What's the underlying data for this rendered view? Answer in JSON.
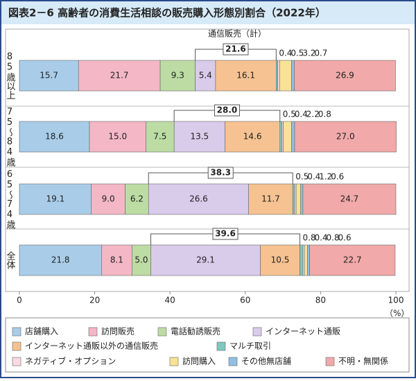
{
  "chart_data": {
    "type": "stacked-barh",
    "title": "図表2－6 高齢者の消費生活相談の販売購入形態別割合（2022年）",
    "xlabel": "（%）",
    "categories": [
      "85歳以上",
      "75～84歳",
      "65～74歳",
      "全体"
    ],
    "xlim": [
      0,
      100
    ],
    "xticks": [
      0,
      20,
      40,
      60,
      80,
      100
    ],
    "bracket_title": "通信販売（計）",
    "bracket_values": [
      21.6,
      28.0,
      38.3,
      39.6
    ],
    "bracket_labels": [
      "21.6",
      "28.0",
      "38.3",
      "39.6"
    ],
    "series": [
      {
        "name": "店舗購入",
        "color": "#a9cde9",
        "values": [
          15.7,
          18.6,
          19.1,
          21.8
        ],
        "value_labels": [
          "15.7",
          "18.6",
          "19.1",
          "21.8"
        ]
      },
      {
        "name": "訪問販売",
        "color": "#f3b7c6",
        "values": [
          21.7,
          15.0,
          9.0,
          8.1
        ],
        "value_labels": [
          "21.7",
          "15.0",
          "9.0",
          "8.1"
        ]
      },
      {
        "name": "電話勧誘販売",
        "color": "#bcdca4",
        "values": [
          9.3,
          7.5,
          6.2,
          5.0
        ],
        "value_labels": [
          "9.3",
          "7.5",
          "6.2",
          "5.0"
        ]
      },
      {
        "name": "インターネット通販",
        "color": "#d9cbea",
        "values": [
          5.4,
          13.5,
          26.6,
          29.1
        ],
        "value_labels": [
          "5.4",
          "13.5",
          "26.6",
          "29.1"
        ]
      },
      {
        "name": "インターネット通販以外の通信販売",
        "color": "#f6c291",
        "values": [
          16.1,
          14.6,
          11.7,
          10.5
        ],
        "value_labels": [
          "16.1",
          "14.6",
          "11.7",
          "10.5"
        ]
      },
      {
        "name": "マルチ取引",
        "color": "#7fc7bf",
        "values": [
          0.4,
          0.5,
          0.5,
          0.8
        ],
        "value_labels": [
          "0.4",
          "0.5",
          "0.5",
          "0.8"
        ]
      },
      {
        "name": "ネガティブ・オプション",
        "color": "#f9d9e2",
        "values": [
          0.5,
          0.4,
          0.4,
          0.4
        ],
        "value_labels": [
          "0.5",
          "0.4",
          "0.4",
          "0.4"
        ]
      },
      {
        "name": "訪問購入",
        "color": "#f9e196",
        "values": [
          3.2,
          2.2,
          1.2,
          0.8
        ],
        "value_labels": [
          "3.2",
          "2.2",
          "1.2",
          "0.8"
        ]
      },
      {
        "name": "その他無店舗",
        "color": "#8fc0e2",
        "values": [
          0.7,
          0.8,
          0.6,
          0.6
        ],
        "value_labels": [
          "0.7",
          "0.8",
          "0.6",
          "0.6"
        ]
      },
      {
        "name": "不明・無関係",
        "color": "#f1a9a9",
        "values": [
          26.9,
          27.0,
          24.7,
          22.7
        ],
        "value_labels": [
          "26.9",
          "27.0",
          "24.7",
          "22.7"
        ]
      }
    ]
  }
}
